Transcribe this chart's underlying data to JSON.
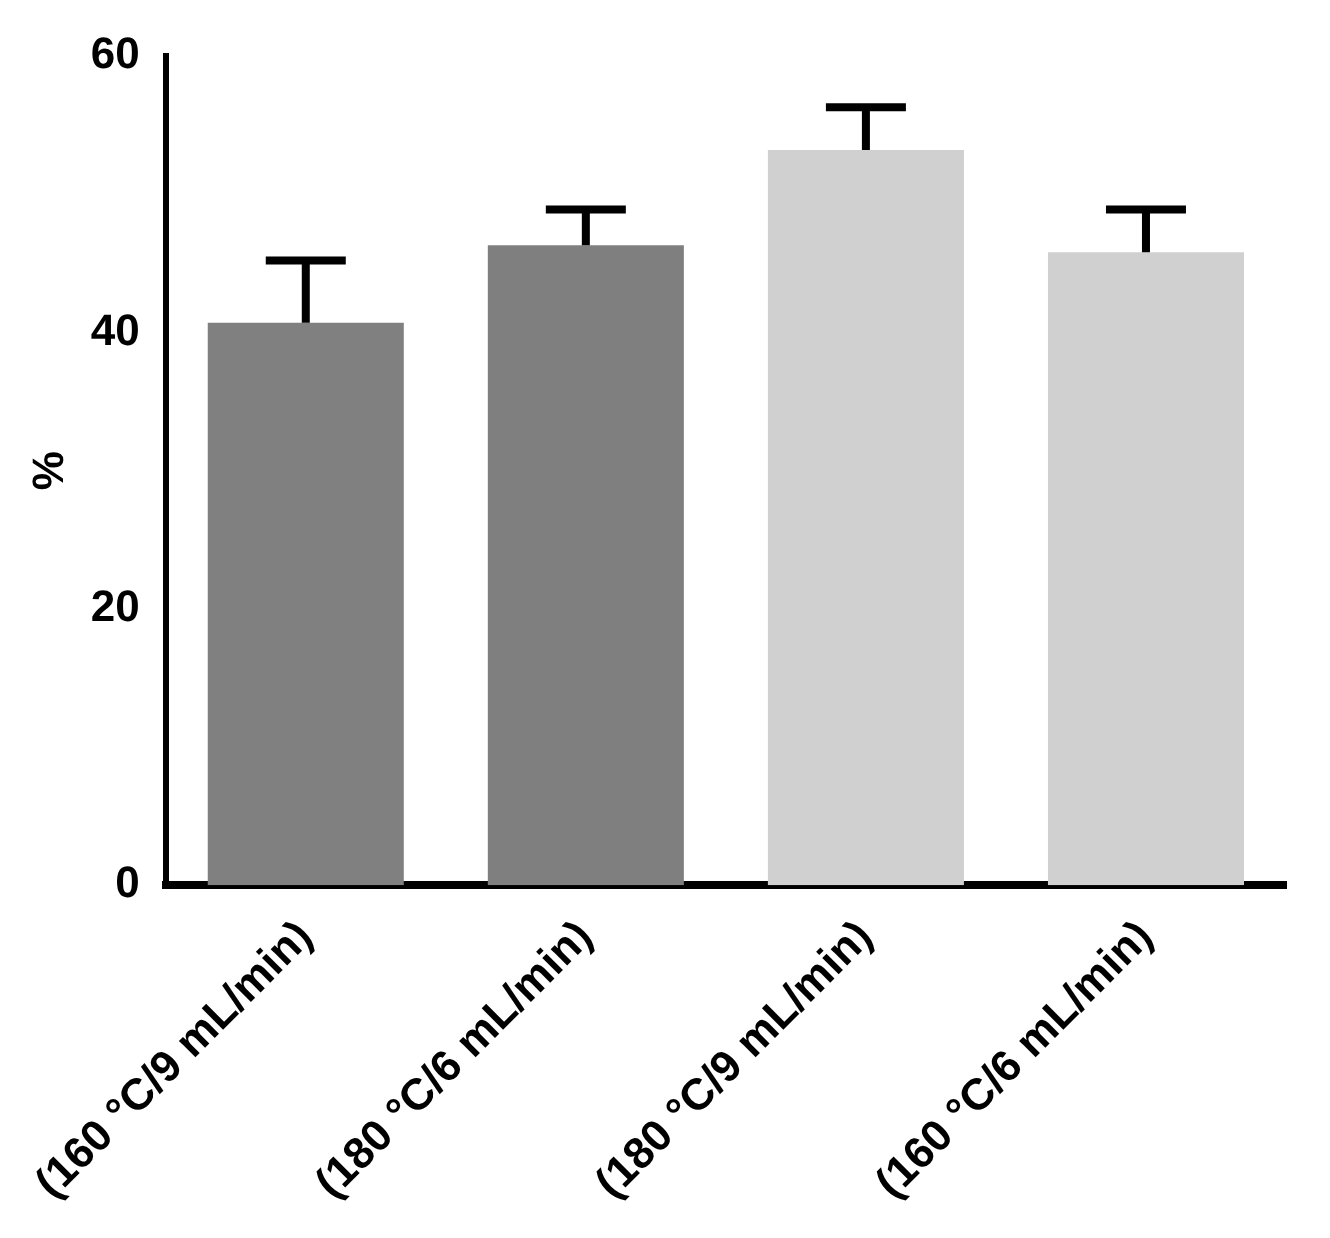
{
  "chart_data": {
    "type": "bar",
    "ylabel": "%",
    "categories": [
      "(160 °C/9 mL/min)",
      "(180 °C/6 mL/min)",
      "(180 °C/9 mL/min)",
      "(160 °C/6 mL/min)"
    ],
    "values": [
      40.7,
      46.3,
      53.2,
      45.8
    ],
    "errors": [
      [
        40.7,
        45.2
      ],
      [
        46.3,
        48.9
      ],
      [
        53.2,
        56.3
      ],
      [
        45.8,
        48.9
      ]
    ],
    "colors": [
      "#808080",
      "#7f7f7f",
      "#d0d0d0",
      "#d0d0d0"
    ],
    "ylim": [
      0,
      60
    ],
    "yticks": [
      0,
      20,
      40,
      60
    ],
    "grid": false,
    "legend": false
  }
}
